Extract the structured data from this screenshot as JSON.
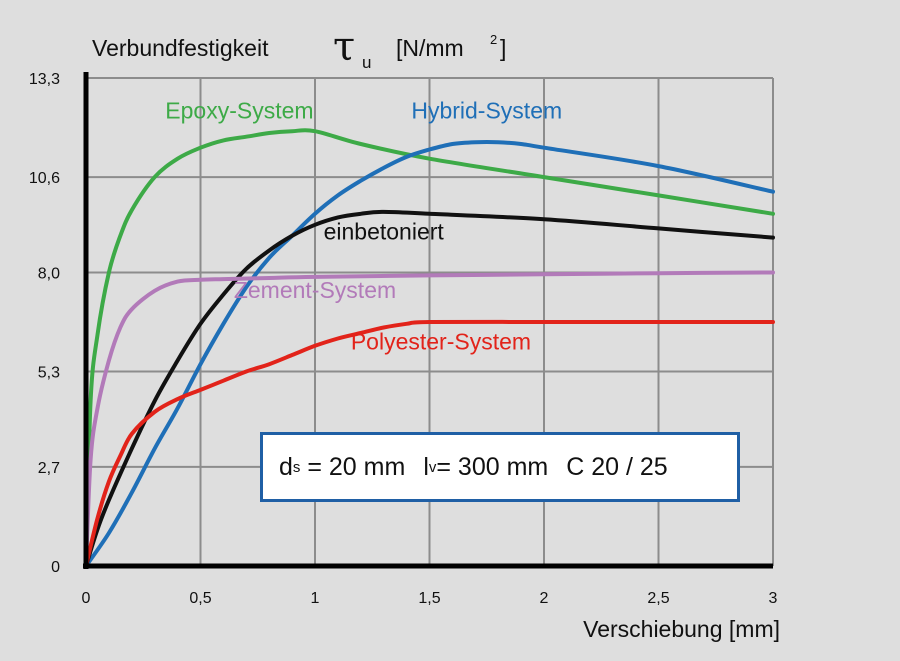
{
  "chart_data": {
    "type": "line",
    "title": "Verbundfestigkeit",
    "title_symbol": "τ",
    "title_symbol_sub": "u",
    "title_unit_prefix": "[N/mm",
    "title_unit_sup": "2",
    "title_unit_suffix": "]",
    "xlabel": "Verschiebung [mm]",
    "ylabel": "",
    "xlim": [
      0,
      3
    ],
    "ylim": [
      0,
      13.3
    ],
    "x_ticks": [
      0,
      0.5,
      1,
      1.5,
      2,
      2.5,
      3
    ],
    "x_tick_labels": [
      "0",
      "0,5",
      "1",
      "1,5",
      "2",
      "2,5",
      "3"
    ],
    "y_ticks": [
      0,
      2.7,
      5.3,
      8.0,
      10.6,
      13.3
    ],
    "y_tick_labels": [
      "0",
      "2,7",
      "5,3",
      "8,0",
      "10,6",
      "13,3"
    ],
    "grid": true,
    "series": [
      {
        "name": "Epoxy-System",
        "color": "#3daa47",
        "x": [
          0,
          0.02,
          0.05,
          0.1,
          0.15,
          0.2,
          0.3,
          0.4,
          0.5,
          0.6,
          0.7,
          0.8,
          0.9,
          1.0,
          1.2,
          1.5,
          2.0,
          2.5,
          3.0
        ],
        "y": [
          0,
          4.5,
          6.3,
          8.0,
          9.0,
          9.7,
          10.6,
          11.1,
          11.4,
          11.6,
          11.7,
          11.8,
          11.85,
          11.85,
          11.5,
          11.1,
          10.6,
          10.1,
          9.6
        ]
      },
      {
        "name": "Hybrid-System",
        "color": "#1f6fb7",
        "x": [
          0,
          0.1,
          0.2,
          0.3,
          0.4,
          0.5,
          0.6,
          0.7,
          0.8,
          0.9,
          1.0,
          1.1,
          1.2,
          1.3,
          1.4,
          1.5,
          1.6,
          1.7,
          1.8,
          1.9,
          2.0,
          2.5,
          3.0
        ],
        "y": [
          0,
          0.9,
          2.0,
          3.2,
          4.3,
          5.5,
          6.6,
          7.6,
          8.4,
          9.0,
          9.6,
          10.1,
          10.5,
          10.85,
          11.15,
          11.35,
          11.5,
          11.55,
          11.55,
          11.5,
          11.4,
          10.9,
          10.2
        ]
      },
      {
        "name": "einbetoniert",
        "color": "#111111",
        "x": [
          0,
          0.05,
          0.1,
          0.2,
          0.3,
          0.4,
          0.5,
          0.6,
          0.7,
          0.8,
          0.9,
          1.0,
          1.1,
          1.2,
          1.3,
          1.5,
          2.0,
          2.5,
          3.0
        ],
        "y": [
          0,
          1.0,
          1.8,
          3.2,
          4.5,
          5.6,
          6.6,
          7.4,
          8.1,
          8.6,
          9.0,
          9.3,
          9.5,
          9.6,
          9.65,
          9.6,
          9.45,
          9.2,
          8.95
        ]
      },
      {
        "name": "Zement-System",
        "color": "#b27ab9",
        "x": [
          0,
          0.02,
          0.05,
          0.1,
          0.15,
          0.2,
          0.3,
          0.4,
          0.5,
          0.6,
          0.8,
          1.0,
          1.5,
          2.0,
          2.5,
          3.0
        ],
        "y": [
          0,
          2.9,
          4.3,
          5.6,
          6.5,
          7.0,
          7.5,
          7.75,
          7.8,
          7.82,
          7.85,
          7.88,
          7.92,
          7.95,
          7.98,
          8.0
        ]
      },
      {
        "name": "Polyester-System",
        "color": "#e2231a",
        "x": [
          0,
          0.05,
          0.1,
          0.15,
          0.2,
          0.3,
          0.4,
          0.5,
          0.6,
          0.7,
          0.8,
          0.9,
          1.0,
          1.1,
          1.2,
          1.3,
          1.4,
          1.5,
          2.0,
          2.5,
          3.0
        ],
        "y": [
          0,
          1.3,
          2.3,
          3.0,
          3.6,
          4.2,
          4.55,
          4.8,
          5.05,
          5.3,
          5.5,
          5.75,
          6.0,
          6.2,
          6.35,
          6.5,
          6.6,
          6.65,
          6.65,
          6.65,
          6.65
        ]
      }
    ],
    "series_label_positions": {
      "Epoxy-System": [
        0.67,
        12.2
      ],
      "Hybrid-System": [
        1.75,
        12.2
      ],
      "einbetoniert": [
        1.3,
        8.9
      ],
      "Zement-System": [
        1.0,
        7.3
      ],
      "Polyester-System": [
        1.55,
        5.9
      ]
    },
    "annotation": {
      "d_main": "d",
      "d_sub": "s",
      "d_rest": "= 20 mm",
      "l_main": "l",
      "l_sub": "v",
      "l_rest": "= 300 mm",
      "concrete": "C 20 / 25"
    }
  }
}
